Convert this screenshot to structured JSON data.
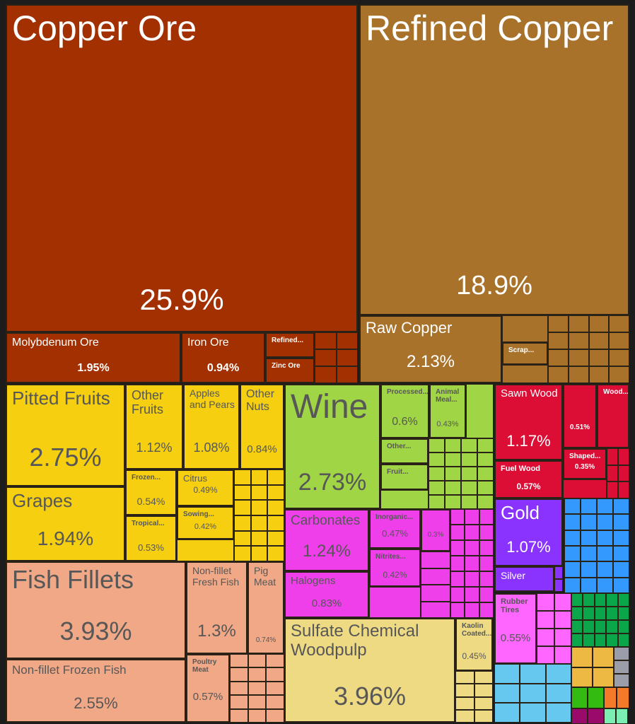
{
  "chart_data": {
    "type": "treemap",
    "title": "",
    "items": [
      {
        "label": "Copper Ore",
        "value": "25.9%",
        "color": "#A33000"
      },
      {
        "label": "Molybdenum Ore",
        "value": "1.95%",
        "color": "#A33000"
      },
      {
        "label": "Iron Ore",
        "value": "0.94%",
        "color": "#A33000"
      },
      {
        "label": "Refined...",
        "value": null,
        "color": "#A33000"
      },
      {
        "label": "Zinc Ore",
        "value": null,
        "color": "#A33000"
      },
      {
        "label": "Refined Copper",
        "value": "18.9%",
        "color": "#A8722A"
      },
      {
        "label": "Raw Copper",
        "value": "2.13%",
        "color": "#A8722A"
      },
      {
        "label": "Scrap...",
        "value": null,
        "color": "#A8722A"
      },
      {
        "label": "Pitted Fruits",
        "value": "2.75%",
        "color": "#F5CF10"
      },
      {
        "label": "Grapes",
        "value": "1.94%",
        "color": "#F5CF10"
      },
      {
        "label": "Other Fruits",
        "value": "1.12%",
        "color": "#F5CF10"
      },
      {
        "label": "Apples and Pears",
        "value": "1.08%",
        "color": "#F5CF10"
      },
      {
        "label": "Other Nuts",
        "value": "0.84%",
        "color": "#F5CF10"
      },
      {
        "label": "Frozen...",
        "value": "0.54%",
        "color": "#F5CF10"
      },
      {
        "label": "Tropical...",
        "value": "0.53%",
        "color": "#F5CF10"
      },
      {
        "label": "Citrus",
        "value": "0.49%",
        "color": "#F5CF10"
      },
      {
        "label": "Sowing...",
        "value": "0.42%",
        "color": "#F5CF10"
      },
      {
        "label": "Fish Fillets",
        "value": "3.93%",
        "color": "#F0A886"
      },
      {
        "label": "Non-fillet Frozen Fish",
        "value": "2.55%",
        "color": "#F0A886"
      },
      {
        "label": "Non-fillet Fresh Fish",
        "value": "1.3%",
        "color": "#F0A886"
      },
      {
        "label": "Pig Meat",
        "value": "0.74%",
        "color": "#F0A886"
      },
      {
        "label": "Poultry Meat",
        "value": "0.57%",
        "color": "#F0A886"
      },
      {
        "label": "Wine",
        "value": "2.73%",
        "color": "#A0D545"
      },
      {
        "label": "Processed...",
        "value": "0.6%",
        "color": "#A0D545"
      },
      {
        "label": "Animal Meal...",
        "value": "0.43%",
        "color": "#A0D545"
      },
      {
        "label": "Other...",
        "value": null,
        "color": "#A0D545"
      },
      {
        "label": "Fruit...",
        "value": null,
        "color": "#A0D545"
      },
      {
        "label": "Carbonates",
        "value": "1.24%",
        "color": "#EE3FEA"
      },
      {
        "label": "Halogens",
        "value": "0.83%",
        "color": "#EE3FEA"
      },
      {
        "label": "Inorganic...",
        "value": "0.47%",
        "color": "#EE3FEA"
      },
      {
        "label": "Nitrites...",
        "value": "0.42%",
        "color": "#EE3FEA"
      },
      {
        "label": "",
        "value": "0.3%",
        "color": "#EE3FEA"
      },
      {
        "label": "Sulfate Chemical Woodpulp",
        "value": "3.96%",
        "color": "#EFDA84"
      },
      {
        "label": "Kaolin Coated...",
        "value": "0.45%",
        "color": "#EFDA84"
      },
      {
        "label": "Sawn Wood",
        "value": "1.17%",
        "color": "#DC0E35"
      },
      {
        "label": "Fuel Wood",
        "value": "0.57%",
        "color": "#DC0E35"
      },
      {
        "label": "",
        "value": "0.51%",
        "color": "#DC0E35"
      },
      {
        "label": "Wood...",
        "value": null,
        "color": "#DC0E35"
      },
      {
        "label": "Shaped...",
        "value": "0.35%",
        "color": "#DC0E35"
      },
      {
        "label": "Gold",
        "value": "1.07%",
        "color": "#8A33FF"
      },
      {
        "label": "Silver",
        "value": null,
        "color": "#8A33FF"
      },
      {
        "label": "Rubber Tires",
        "value": "0.55%",
        "color": "#FF66FF"
      }
    ],
    "minor_colors": {
      "copper_ore": "#A33000",
      "refined_copper": "#A8722A",
      "fruits": "#F5CF10",
      "fish": "#F0A886",
      "wine": "#A0D545",
      "chemicals": "#EE3FEA",
      "woodpulp": "#EFDA84",
      "wood": "#DC0E35",
      "precious": "#8A33FF",
      "machinery": "#3399FF",
      "rubber": "#FF66FF",
      "transport": "#66C8EE",
      "textiles": "#0BA64A",
      "stone": "#EEB942",
      "metals": "#9B9EAA",
      "veg": "#33BB11",
      "misc": "#F47A2A",
      "instruments": "#9A0A6A",
      "footwear": "#7BEFB3"
    }
  }
}
